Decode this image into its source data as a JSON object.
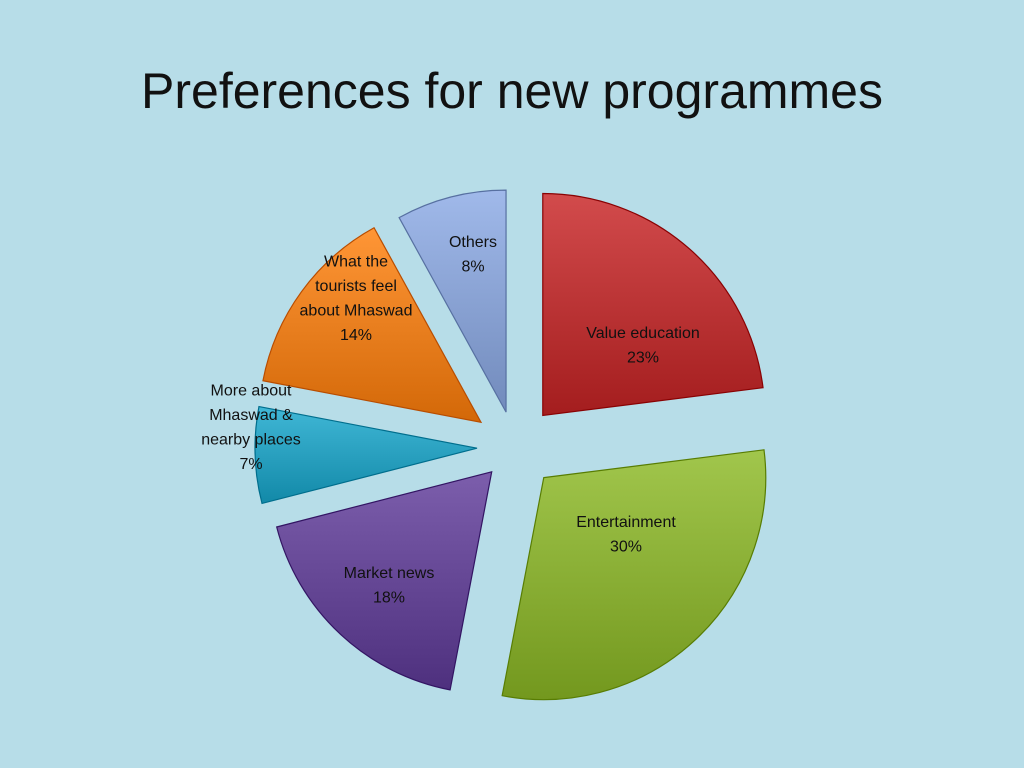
{
  "slide": {
    "title": "Preferences for new programmes"
  },
  "chart_data": {
    "type": "pie",
    "title": "Preferences for new programmes",
    "slices": [
      {
        "label": "Value education",
        "value": 23,
        "display": "23%",
        "color": "#c0393a"
      },
      {
        "label": "Entertainment",
        "value": 30,
        "display": "30%",
        "color": "#8fb43a"
      },
      {
        "label": "Market news",
        "value": 18,
        "display": "18%",
        "color": "#6a4c9a"
      },
      {
        "label": "More about Mhaswad & nearby places",
        "value": 7,
        "display": "7%",
        "color": "#2ea5c4"
      },
      {
        "label": "What the tourists feel about Mhaswad",
        "value": 14,
        "display": "14%",
        "color": "#ef8424"
      },
      {
        "label": "Others",
        "value": 8,
        "display": "8%",
        "color": "#8ea7d8"
      }
    ]
  }
}
